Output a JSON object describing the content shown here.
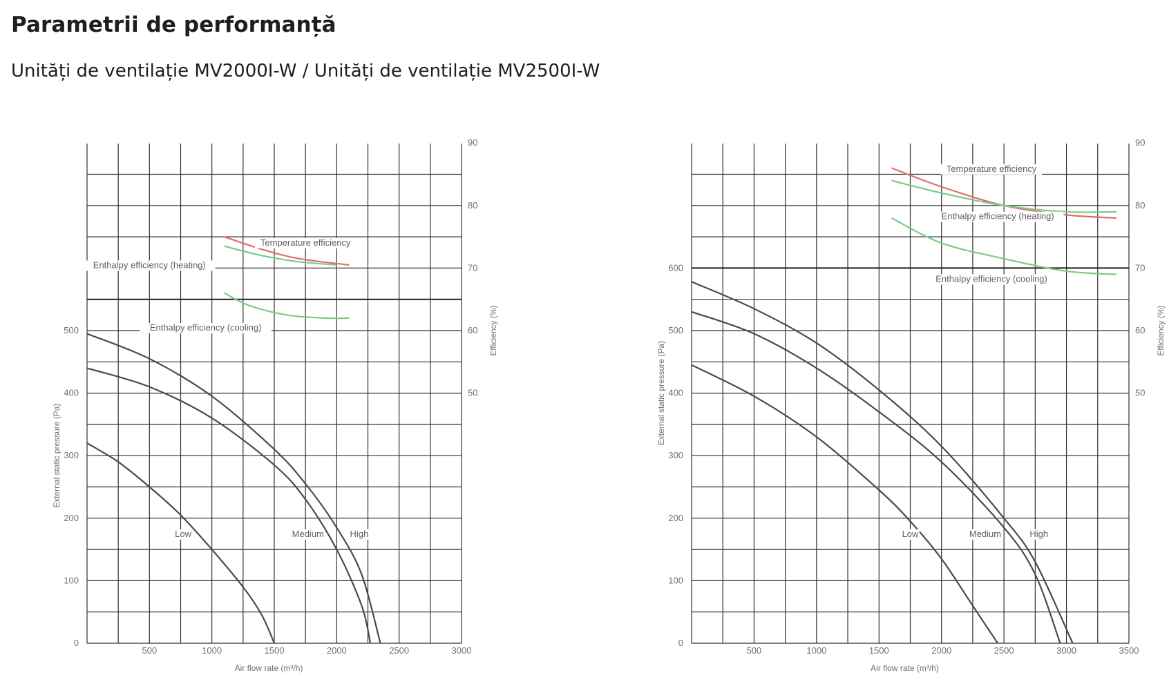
{
  "header": {
    "title": "Parametrii de performanță",
    "subtitle": "Unități de ventilație MV2000I-W / Unități de ventilație MV2500I-W"
  },
  "chart_data": [
    {
      "type": "line",
      "xlabel": "Air flow rate (m³/h)",
      "ylabel": "External static pressure (Pa)",
      "y2label": "Efficiency (%)",
      "xlim": [
        0,
        3000
      ],
      "xticks": [
        500,
        1000,
        1500,
        2000,
        2500,
        3000
      ],
      "ylim": [
        0,
        500
      ],
      "yticks": [
        0,
        100,
        200,
        300,
        400,
        500
      ],
      "y2ticks": [
        50,
        60,
        70,
        80,
        90
      ],
      "y2_at_pa": [
        400,
        500,
        600,
        700,
        800
      ],
      "grid": true,
      "pressure_curves": [
        {
          "name": "Low",
          "color": "#4a4a4a",
          "x": [
            0,
            250,
            500,
            750,
            1000,
            1250,
            1400,
            1500
          ],
          "y": [
            320,
            290,
            250,
            205,
            150,
            90,
            45,
            0
          ]
        },
        {
          "name": "Medium",
          "color": "#4a4a4a",
          "x": [
            0,
            500,
            1000,
            1500,
            1750,
            2000,
            2200,
            2270
          ],
          "y": [
            440,
            410,
            360,
            285,
            230,
            150,
            60,
            0
          ]
        },
        {
          "name": "High",
          "color": "#4a4a4a",
          "x": [
            0,
            500,
            1000,
            1500,
            1750,
            2000,
            2200,
            2350
          ],
          "y": [
            495,
            455,
            395,
            310,
            255,
            185,
            110,
            0
          ]
        }
      ],
      "efficiency_curves": [
        {
          "name": "Temperature efficiency",
          "color": "#e06d6d",
          "x": [
            1100,
            1400,
            1700,
            2100
          ],
          "y": [
            75,
            73,
            71.5,
            70.5
          ]
        },
        {
          "name": "Enthalpy efficiency (heating)",
          "color": "#7acb86",
          "x": [
            1100,
            1400,
            1700,
            2000
          ],
          "y": [
            73.5,
            72,
            71,
            70.5
          ]
        },
        {
          "name": "Enthalpy efficiency (cooling)",
          "color": "#7acb86",
          "x": [
            1100,
            1300,
            1600,
            1900,
            2100
          ],
          "y": [
            66,
            64,
            62.5,
            62,
            62
          ]
        }
      ],
      "annotations": [
        {
          "text": "Temperature efficiency",
          "x": 1750,
          "y": 73.6
        },
        {
          "text": "Enthalpy efficiency (heating)",
          "x": 500,
          "y": 70
        },
        {
          "text": "Enthalpy efficiency (cooling)",
          "x": 950,
          "y": 60
        },
        {
          "text": "Low",
          "x": 770,
          "y": 170
        },
        {
          "text": "Medium",
          "x": 1770,
          "y": 170
        },
        {
          "text": "High",
          "x": 2180,
          "y": 170
        }
      ]
    },
    {
      "type": "line",
      "xlabel": "Air flow rate (m³/h)",
      "ylabel": "External static pressure (Pa)",
      "y2label": "Efficiency (%)",
      "xlim": [
        0,
        3500
      ],
      "xticks": [
        500,
        1000,
        1500,
        2000,
        2500,
        3000,
        3500
      ],
      "ylim": [
        0,
        600
      ],
      "yticks": [
        0,
        100,
        200,
        300,
        400,
        500,
        600
      ],
      "y2ticks": [
        50,
        60,
        70,
        80,
        90
      ],
      "y2_at_pa": [
        400,
        500,
        600,
        700,
        800
      ],
      "grid": true,
      "pressure_curves": [
        {
          "name": "Low",
          "color": "#4a4a4a",
          "x": [
            0,
            500,
            1000,
            1500,
            1750,
            2000,
            2250,
            2450
          ],
          "y": [
            445,
            395,
            330,
            245,
            195,
            135,
            60,
            0
          ]
        },
        {
          "name": "Medium",
          "color": "#4a4a4a",
          "x": [
            0,
            500,
            1000,
            1500,
            2000,
            2500,
            2750,
            2950
          ],
          "y": [
            530,
            495,
            440,
            370,
            290,
            185,
            110,
            0
          ]
        },
        {
          "name": "High",
          "color": "#4a4a4a",
          "x": [
            0,
            500,
            1000,
            1500,
            2000,
            2500,
            2750,
            3050
          ],
          "y": [
            578,
            535,
            480,
            405,
            315,
            200,
            130,
            0
          ]
        }
      ],
      "efficiency_curves": [
        {
          "name": "Temperature efficiency",
          "color": "#e06d6d",
          "x": [
            1600,
            2000,
            2500,
            3000,
            3400
          ],
          "y": [
            86,
            83,
            80,
            78.5,
            78
          ]
        },
        {
          "name": "Enthalpy efficiency (heating)",
          "color": "#7acb86",
          "x": [
            1600,
            2000,
            2500,
            3000,
            3400
          ],
          "y": [
            84,
            82,
            80,
            79,
            79
          ]
        },
        {
          "name": "Enthalpy efficiency (cooling)",
          "color": "#7acb86",
          "x": [
            1600,
            2000,
            2500,
            3000,
            3400
          ],
          "y": [
            78,
            74,
            71.5,
            69.5,
            69
          ]
        }
      ],
      "annotations": [
        {
          "text": "Temperature efficiency",
          "x": 2400,
          "y": 85.4
        },
        {
          "text": "Enthalpy efficiency (heating)",
          "x": 2450,
          "y": 77.8
        },
        {
          "text": "Enthalpy efficiency (cooling)",
          "x": 2400,
          "y": 67.8
        },
        {
          "text": "Low",
          "x": 1750,
          "y": 170
        },
        {
          "text": "Medium",
          "x": 2350,
          "y": 170
        },
        {
          "text": "High",
          "x": 2780,
          "y": 170
        }
      ]
    }
  ]
}
